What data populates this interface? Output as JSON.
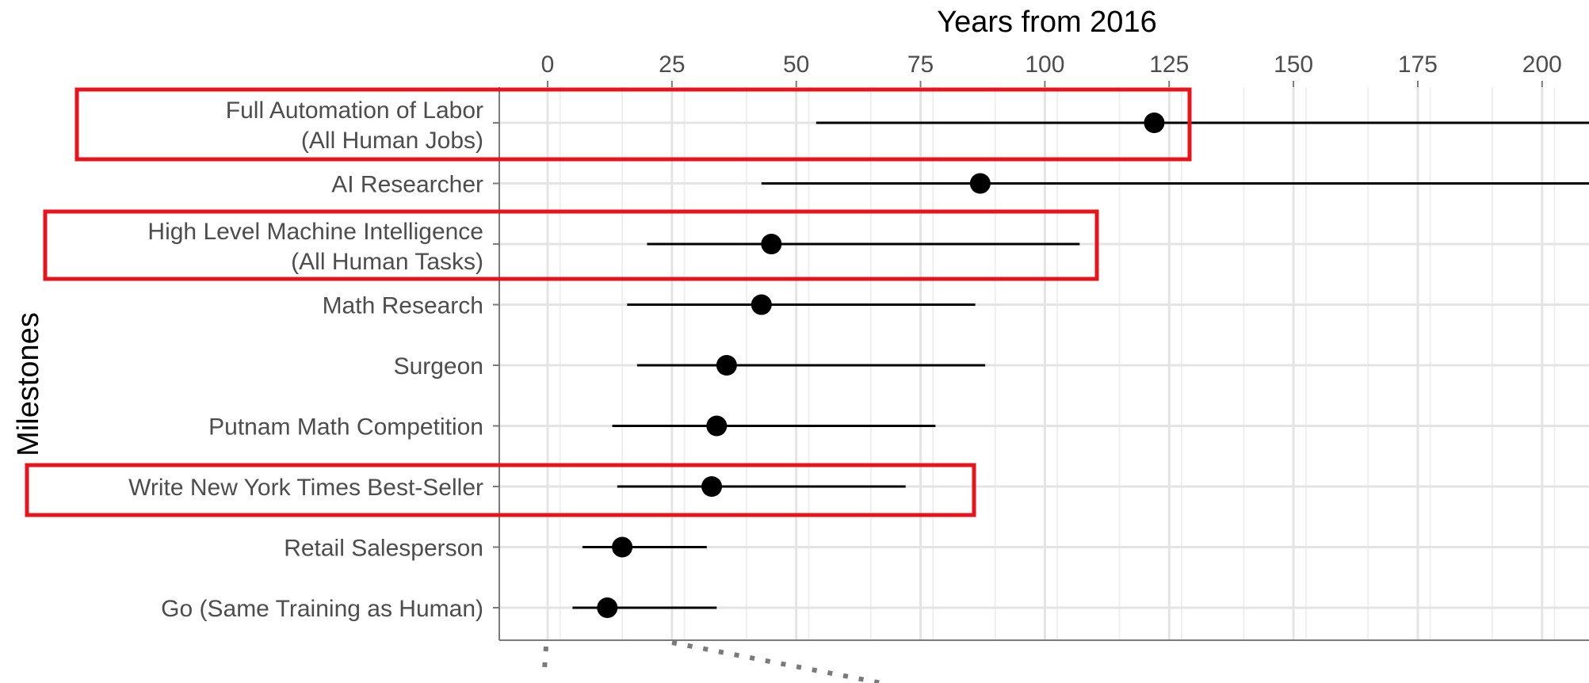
{
  "chart_data": {
    "type": "scatter",
    "title": "",
    "xlabel": "Years from 2016",
    "ylabel": "Milestones",
    "xlim": [
      -10,
      210
    ],
    "x_ticks": [
      "0",
      "25",
      "50",
      "75",
      "100",
      "125",
      "150",
      "175",
      "200"
    ],
    "grid": true,
    "milestones": [
      {
        "label_line1": "Full Automation of Labor",
        "label_line2": "(All Human Jobs)",
        "estimate": 122,
        "low": 54,
        "high": 215,
        "highlighted": true
      },
      {
        "label_line1": "AI Researcher",
        "label_line2": "",
        "estimate": 87,
        "low": 43,
        "high": 215,
        "highlighted": false
      },
      {
        "label_line1": "High Level Machine Intelligence",
        "label_line2": "(All Human Tasks)",
        "estimate": 45,
        "low": 20,
        "high": 107,
        "highlighted": true
      },
      {
        "label_line1": "Math Research",
        "label_line2": "",
        "estimate": 43,
        "low": 16,
        "high": 86,
        "highlighted": false
      },
      {
        "label_line1": "Surgeon",
        "label_line2": "",
        "estimate": 36,
        "low": 18,
        "high": 88,
        "highlighted": false
      },
      {
        "label_line1": "Putnam Math Competition",
        "label_line2": "",
        "estimate": 34,
        "low": 13,
        "high": 78,
        "highlighted": false
      },
      {
        "label_line1": "Write New York Times Best-Seller",
        "label_line2": "",
        "estimate": 33,
        "low": 14,
        "high": 72,
        "highlighted": true
      },
      {
        "label_line1": "Retail Salesperson",
        "label_line2": "",
        "estimate": 15,
        "low": 7,
        "high": 32,
        "highlighted": false
      },
      {
        "label_line1": "Go (Same Training as Human)",
        "label_line2": "",
        "estimate": 12,
        "low": 5,
        "high": 34,
        "highlighted": false
      }
    ],
    "colors": {
      "point": "#000000",
      "highlight_box": "#e8141b",
      "grid_major": "#e4e4e4",
      "grid_minor": "#efefef",
      "axis": "#7a7a7a",
      "tick_label": "#4d4d4d"
    }
  }
}
